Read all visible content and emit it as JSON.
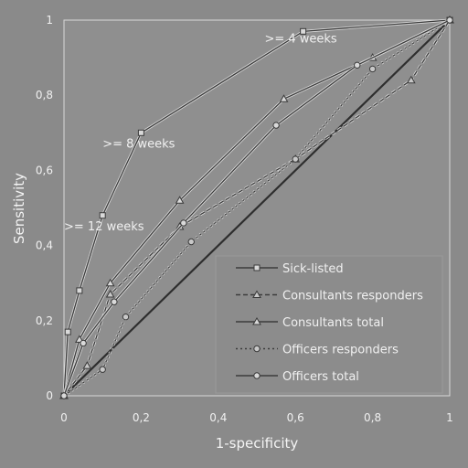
{
  "chart_data": {
    "type": "line",
    "title": "",
    "xlabel": "1-specificity",
    "ylabel": "Sensitivity",
    "xlim": [
      0,
      1
    ],
    "ylim": [
      0,
      1
    ],
    "x_ticks": [
      "0",
      "0,2",
      "0,4",
      "0,6",
      "0,8",
      "1"
    ],
    "y_ticks": [
      "0",
      "0,2",
      "0,4",
      "0,6",
      "0,8",
      "1"
    ],
    "legend_position": "bottom-right",
    "annotations": [
      {
        "text": ">= 4 weeks",
        "x": 0.52,
        "y": 0.94
      },
      {
        "text": ">= 8 weeks",
        "x": 0.1,
        "y": 0.66
      },
      {
        "text": ">= 12 weeks",
        "x": 0.0,
        "y": 0.44
      }
    ],
    "series": [
      {
        "name": "Sick-listed",
        "marker": "square",
        "dash": "solid",
        "x": [
          0,
          0.01,
          0.04,
          0.1,
          0.2,
          0.62,
          1
        ],
        "y": [
          0,
          0.17,
          0.28,
          0.48,
          0.7,
          0.97,
          1
        ]
      },
      {
        "name": "Consultants responders",
        "marker": "triangle-open",
        "dash": "dashed",
        "x": [
          0,
          0.06,
          0.12,
          0.3,
          0.6,
          0.9,
          1
        ],
        "y": [
          0,
          0.08,
          0.27,
          0.45,
          0.63,
          0.84,
          1
        ]
      },
      {
        "name": "Consultants total",
        "marker": "triangle",
        "dash": "solid",
        "x": [
          0,
          0.04,
          0.12,
          0.3,
          0.57,
          0.8,
          1
        ],
        "y": [
          0,
          0.15,
          0.3,
          0.52,
          0.79,
          0.9,
          1
        ]
      },
      {
        "name": "Officers responders",
        "marker": "circle-open",
        "dash": "dotted",
        "x": [
          0,
          0.1,
          0.16,
          0.33,
          0.6,
          0.8,
          1
        ],
        "y": [
          0,
          0.07,
          0.21,
          0.41,
          0.63,
          0.87,
          1
        ]
      },
      {
        "name": "Officers total",
        "marker": "circle",
        "dash": "solid",
        "x": [
          0,
          0.05,
          0.13,
          0.31,
          0.55,
          0.76,
          1
        ],
        "y": [
          0,
          0.14,
          0.25,
          0.46,
          0.72,
          0.88,
          1
        ]
      }
    ],
    "reference_line": {
      "x": [
        0,
        1
      ],
      "y": [
        0,
        1
      ]
    }
  }
}
